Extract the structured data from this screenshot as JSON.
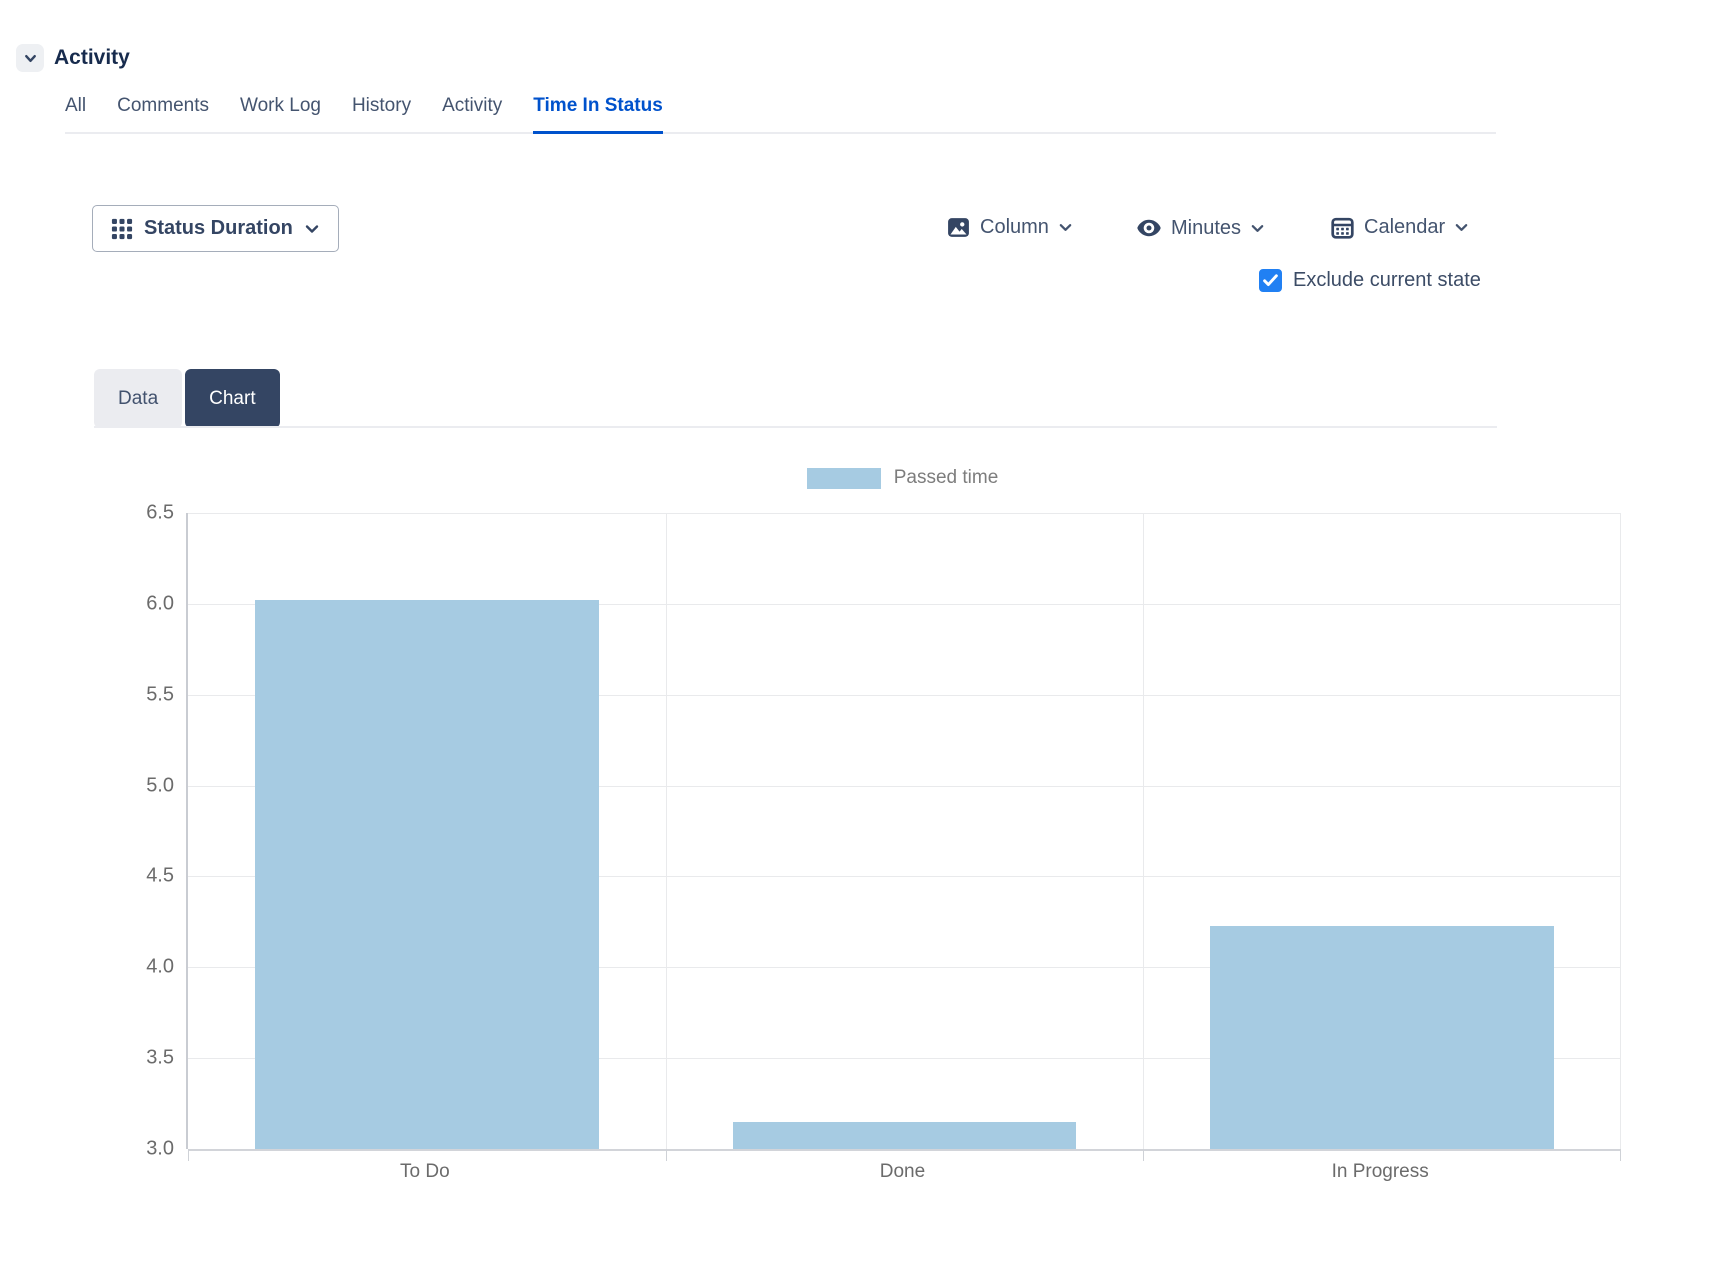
{
  "header": {
    "title": "Activity"
  },
  "activity_tabs": {
    "items": [
      {
        "label": "All",
        "active": false
      },
      {
        "label": "Comments",
        "active": false
      },
      {
        "label": "Work Log",
        "active": false
      },
      {
        "label": "History",
        "active": false
      },
      {
        "label": "Activity",
        "active": false
      },
      {
        "label": "Time In Status",
        "active": true
      }
    ]
  },
  "toolbar": {
    "status_duration_label": "Status Duration",
    "column_label": "Column",
    "minutes_label": "Minutes",
    "calendar_label": "Calendar",
    "exclude_checkbox": {
      "label": "Exclude current state",
      "checked": true
    }
  },
  "view_tabs": {
    "data_label": "Data",
    "chart_label": "Chart",
    "active": "Chart"
  },
  "chart_data": {
    "type": "bar",
    "categories": [
      "To Do",
      "Done",
      "In Progress"
    ],
    "series": [
      {
        "name": "Passed time",
        "values": [
          6.02,
          3.15,
          4.23
        ]
      }
    ],
    "title": "",
    "xlabel": "",
    "ylabel": "",
    "ylim": [
      3.0,
      6.5
    ],
    "ytick_step": 0.5,
    "ytick_labels": [
      "3.0",
      "3.5",
      "4.0",
      "4.5",
      "5.0",
      "5.5",
      "6.0",
      "6.5"
    ],
    "grid": true,
    "legend_position": "top",
    "bar_color": "#a6cbe2"
  },
  "colors": {
    "accent_blue": "#0052cc",
    "checkbox_blue": "#2180f3",
    "dark_navy": "#344563",
    "bar_blue": "#a6cbe2",
    "divider_gray": "#ebecf0"
  }
}
